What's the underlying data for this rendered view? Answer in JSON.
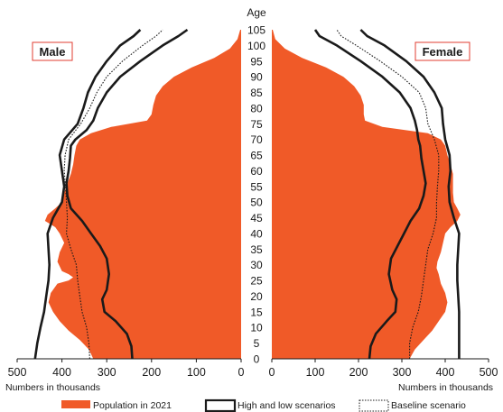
{
  "chart_data": {
    "type": "area",
    "y_axis_title": "Age",
    "x_axis_title": "Numbers in thousands",
    "x_ticks": [
      "500",
      "400",
      "300",
      "200",
      "100",
      "0"
    ],
    "xlim": [
      0,
      500
    ],
    "ylim": [
      0,
      105
    ],
    "y_ticks": [
      0,
      5,
      10,
      15,
      20,
      25,
      30,
      35,
      40,
      45,
      50,
      55,
      60,
      65,
      70,
      75,
      80,
      85,
      90,
      95,
      100,
      105
    ],
    "panels": [
      {
        "label": "Male",
        "population_2021": [
          [
            0,
            330
          ],
          [
            3,
            340
          ],
          [
            6,
            360
          ],
          [
            9,
            385
          ],
          [
            12,
            405
          ],
          [
            15,
            420
          ],
          [
            18,
            430
          ],
          [
            21,
            425
          ],
          [
            24,
            410
          ],
          [
            25,
            385
          ],
          [
            26,
            375
          ],
          [
            27,
            385
          ],
          [
            28,
            400
          ],
          [
            31,
            410
          ],
          [
            34,
            405
          ],
          [
            37,
            395
          ],
          [
            40,
            405
          ],
          [
            42,
            415
          ],
          [
            44,
            438
          ],
          [
            46,
            432
          ],
          [
            48,
            415
          ],
          [
            50,
            400
          ],
          [
            53,
            395
          ],
          [
            56,
            388
          ],
          [
            59,
            380
          ],
          [
            62,
            375
          ],
          [
            65,
            372
          ],
          [
            68,
            368
          ],
          [
            70,
            360
          ],
          [
            72,
            335
          ],
          [
            74,
            290
          ],
          [
            76,
            210
          ],
          [
            78,
            200
          ],
          [
            81,
            196
          ],
          [
            84,
            190
          ],
          [
            87,
            175
          ],
          [
            90,
            150
          ],
          [
            93,
            110
          ],
          [
            96,
            60
          ],
          [
            99,
            25
          ],
          [
            102,
            8
          ],
          [
            105,
            2
          ]
        ],
        "high_scenario": [
          [
            0,
            460
          ],
          [
            5,
            455
          ],
          [
            10,
            448
          ],
          [
            15,
            440
          ],
          [
            20,
            435
          ],
          [
            25,
            430
          ],
          [
            30,
            428
          ],
          [
            35,
            430
          ],
          [
            40,
            432
          ],
          [
            45,
            420
          ],
          [
            50,
            400
          ],
          [
            55,
            395
          ],
          [
            60,
            400
          ],
          [
            65,
            405
          ],
          [
            70,
            395
          ],
          [
            75,
            365
          ],
          [
            80,
            352
          ],
          [
            85,
            342
          ],
          [
            90,
            325
          ],
          [
            95,
            300
          ],
          [
            100,
            270
          ],
          [
            103,
            240
          ],
          [
            105,
            225
          ]
        ],
        "low_scenario": [
          [
            0,
            243
          ],
          [
            4,
            245
          ],
          [
            8,
            255
          ],
          [
            12,
            280
          ],
          [
            15,
            305
          ],
          [
            19,
            310
          ],
          [
            22,
            300
          ],
          [
            27,
            295
          ],
          [
            32,
            300
          ],
          [
            36,
            315
          ],
          [
            40,
            335
          ],
          [
            44,
            355
          ],
          [
            48,
            380
          ],
          [
            52,
            388
          ],
          [
            56,
            390
          ],
          [
            60,
            385
          ],
          [
            64,
            382
          ],
          [
            68,
            380
          ],
          [
            70,
            370
          ],
          [
            73,
            345
          ],
          [
            76,
            330
          ],
          [
            80,
            320
          ],
          [
            85,
            300
          ],
          [
            90,
            270
          ],
          [
            95,
            225
          ],
          [
            100,
            175
          ],
          [
            103,
            140
          ],
          [
            105,
            120
          ]
        ],
        "baseline_scenario": [
          [
            0,
            338
          ],
          [
            5,
            340
          ],
          [
            10,
            345
          ],
          [
            15,
            355
          ],
          [
            20,
            360
          ],
          [
            25,
            365
          ],
          [
            30,
            368
          ],
          [
            35,
            380
          ],
          [
            40,
            390
          ],
          [
            45,
            388
          ],
          [
            50,
            390
          ],
          [
            55,
            392
          ],
          [
            60,
            395
          ],
          [
            65,
            393
          ],
          [
            70,
            385
          ],
          [
            75,
            358
          ],
          [
            80,
            338
          ],
          [
            85,
            322
          ],
          [
            90,
            300
          ],
          [
            95,
            265
          ],
          [
            100,
            220
          ],
          [
            103,
            190
          ],
          [
            105,
            175
          ]
        ]
      },
      {
        "label": "Female",
        "population_2021": [
          [
            0,
            318
          ],
          [
            3,
            330
          ],
          [
            6,
            350
          ],
          [
            9,
            370
          ],
          [
            12,
            385
          ],
          [
            15,
            400
          ],
          [
            18,
            405
          ],
          [
            21,
            400
          ],
          [
            24,
            390
          ],
          [
            27,
            385
          ],
          [
            29,
            380
          ],
          [
            31,
            382
          ],
          [
            34,
            390
          ],
          [
            37,
            395
          ],
          [
            40,
            400
          ],
          [
            42,
            412
          ],
          [
            44,
            428
          ],
          [
            46,
            435
          ],
          [
            48,
            428
          ],
          [
            50,
            420
          ],
          [
            53,
            418
          ],
          [
            56,
            418
          ],
          [
            59,
            418
          ],
          [
            62,
            412
          ],
          [
            65,
            405
          ],
          [
            68,
            400
          ],
          [
            70,
            390
          ],
          [
            72,
            360
          ],
          [
            74,
            255
          ],
          [
            76,
            215
          ],
          [
            78,
            212
          ],
          [
            81,
            212
          ],
          [
            84,
            205
          ],
          [
            87,
            190
          ],
          [
            90,
            165
          ],
          [
            93,
            125
          ],
          [
            96,
            70
          ],
          [
            99,
            30
          ],
          [
            102,
            8
          ],
          [
            105,
            2
          ]
        ],
        "high_scenario": [
          [
            0,
            432
          ],
          [
            5,
            432
          ],
          [
            10,
            432
          ],
          [
            15,
            432
          ],
          [
            20,
            430
          ],
          [
            25,
            428
          ],
          [
            30,
            428
          ],
          [
            35,
            430
          ],
          [
            40,
            432
          ],
          [
            45,
            420
          ],
          [
            50,
            410
          ],
          [
            55,
            408
          ],
          [
            60,
            412
          ],
          [
            65,
            410
          ],
          [
            70,
            400
          ],
          [
            75,
            395
          ],
          [
            80,
            392
          ],
          [
            85,
            375
          ],
          [
            90,
            350
          ],
          [
            95,
            310
          ],
          [
            100,
            260
          ],
          [
            103,
            220
          ],
          [
            105,
            205
          ]
        ],
        "low_scenario": [
          [
            0,
            225
          ],
          [
            4,
            228
          ],
          [
            8,
            240
          ],
          [
            12,
            265
          ],
          [
            15,
            285
          ],
          [
            19,
            288
          ],
          [
            22,
            278
          ],
          [
            27,
            270
          ],
          [
            32,
            275
          ],
          [
            36,
            290
          ],
          [
            40,
            305
          ],
          [
            44,
            320
          ],
          [
            48,
            340
          ],
          [
            52,
            350
          ],
          [
            56,
            355
          ],
          [
            60,
            350
          ],
          [
            64,
            345
          ],
          [
            68,
            342
          ],
          [
            70,
            338
          ],
          [
            73,
            335
          ],
          [
            76,
            330
          ],
          [
            80,
            320
          ],
          [
            85,
            295
          ],
          [
            90,
            255
          ],
          [
            95,
            205
          ],
          [
            100,
            150
          ],
          [
            103,
            110
          ],
          [
            105,
            100
          ]
        ],
        "baseline_scenario": [
          [
            0,
            318
          ],
          [
            5,
            318
          ],
          [
            10,
            325
          ],
          [
            15,
            338
          ],
          [
            20,
            345
          ],
          [
            25,
            350
          ],
          [
            30,
            355
          ],
          [
            35,
            360
          ],
          [
            40,
            372
          ],
          [
            45,
            380
          ],
          [
            50,
            380
          ],
          [
            55,
            382
          ],
          [
            60,
            385
          ],
          [
            65,
            385
          ],
          [
            70,
            375
          ],
          [
            75,
            360
          ],
          [
            80,
            355
          ],
          [
            85,
            340
          ],
          [
            90,
            300
          ],
          [
            95,
            250
          ],
          [
            100,
            195
          ],
          [
            103,
            160
          ],
          [
            105,
            150
          ]
        ]
      }
    ],
    "legend": {
      "position": "bottom",
      "items": [
        "Population in 2021",
        "High and low scenarios",
        "Baseline scenario"
      ]
    },
    "colors": {
      "population": "#f05a28",
      "scenario_line": "#1a1a1a",
      "label_box_border": "#e03c31"
    }
  }
}
